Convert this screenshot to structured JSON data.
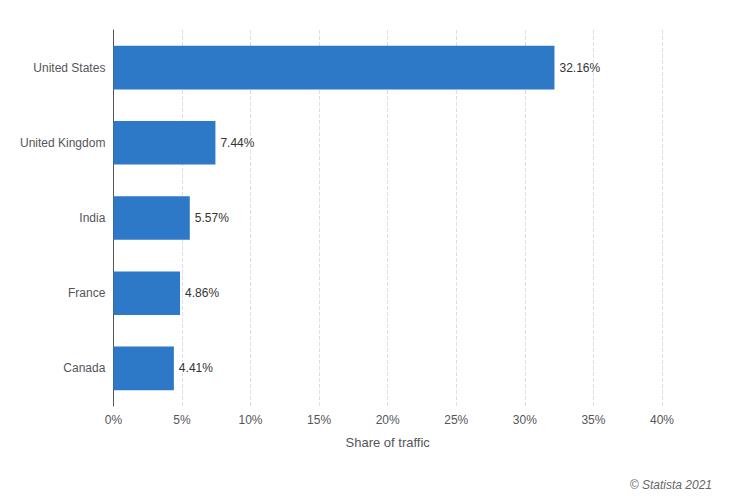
{
  "chart_data": {
    "type": "bar",
    "orientation": "horizontal",
    "categories": [
      "Canada",
      "France",
      "India",
      "United Kingdom",
      "United States"
    ],
    "values": [
      4.41,
      4.86,
      5.57,
      7.44,
      32.16
    ],
    "value_labels": [
      "4.41%",
      "4.86%",
      "5.57%",
      "7.44%",
      "32.16%"
    ],
    "data_labels": true,
    "color": "#2d79c7",
    "xlabel": "Share of traffic",
    "xlim": [
      0,
      40
    ],
    "xticks": [
      {
        "value": 0,
        "label": "0%"
      },
      {
        "value": 5,
        "label": "5%"
      },
      {
        "value": 10,
        "label": "10%"
      },
      {
        "value": 15,
        "label": "15%"
      },
      {
        "value": 20,
        "label": "20%"
      },
      {
        "value": 25,
        "label": "25%"
      },
      {
        "value": 30,
        "label": "30%"
      },
      {
        "value": 35,
        "label": "35%"
      },
      {
        "value": 40,
        "label": "40%"
      }
    ],
    "grid": true,
    "annotation": "© Statista 2021"
  }
}
